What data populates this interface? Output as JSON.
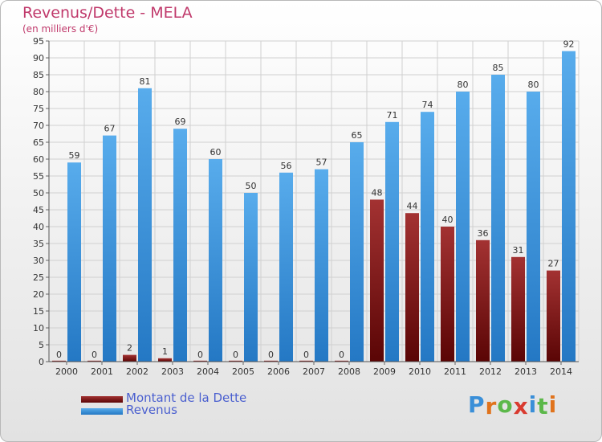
{
  "chart_data": {
    "type": "bar",
    "title": "Revenus/Dette - MELA",
    "subtitle": "(en milliers d'€)",
    "categories": [
      "2000",
      "2001",
      "2002",
      "2003",
      "2004",
      "2005",
      "2006",
      "2007",
      "2008",
      "2009",
      "2010",
      "2011",
      "2012",
      "2013",
      "2014"
    ],
    "series": [
      {
        "name": "Montant de la Dette",
        "color": "#8b1a1a",
        "values": [
          0,
          0,
          2,
          1,
          0,
          0,
          0,
          0,
          0,
          48,
          44,
          40,
          36,
          31,
          27
        ]
      },
      {
        "name": "Revenus",
        "color": "#3a9be0",
        "values": [
          59,
          67,
          81,
          69,
          60,
          50,
          56,
          57,
          65,
          71,
          74,
          80,
          85,
          80,
          92
        ]
      }
    ],
    "ylim": [
      0,
      95
    ],
    "ytick_step": 5,
    "grid": true,
    "legend_position": "bottom-left"
  },
  "logo": {
    "text": "Proxiti",
    "colors": [
      "#3a8fd8",
      "#e0731c",
      "#5cb84a",
      "#d93b30",
      "#3a8fd8",
      "#5cb84a",
      "#e0731c"
    ]
  }
}
